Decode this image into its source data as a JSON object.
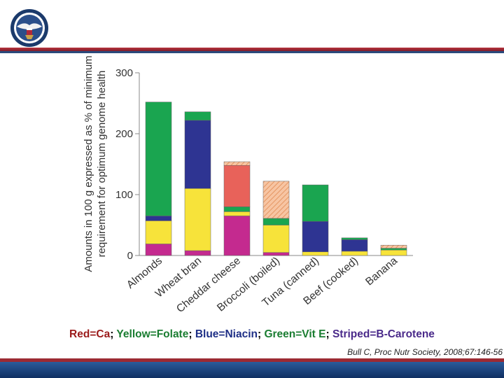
{
  "chart_data": {
    "type": "bar",
    "stacked": true,
    "categories": [
      "Almonds",
      "Wheat bran",
      "Cheddar cheese",
      "Broccoli (boiled)",
      "Tuna (canned)",
      "Beef (cooked)",
      "Banana"
    ],
    "ylabel_line1": "Amounts in 100 g expressed as % of minimum",
    "ylabel_line2": "requirement for optimum genome health",
    "ylim": [
      0,
      300
    ],
    "yticks": [
      "0",
      "100",
      "200",
      "300"
    ],
    "yticks_values": [
      0,
      100,
      200,
      300
    ],
    "series": [
      {
        "key": "ca",
        "color": "#c42a8f",
        "striped": false,
        "values": [
          19,
          8,
          65,
          5,
          0,
          0,
          0
        ]
      },
      {
        "key": "bc",
        "color": "#ecab9a",
        "striped": true,
        "values": [
          0,
          0,
          0,
          0,
          0,
          0,
          0
        ]
      },
      {
        "key": "fol",
        "color": "#f7e33a",
        "striped": false,
        "values": [
          38,
          102,
          7,
          45,
          6,
          7,
          9
        ]
      },
      {
        "key": "nia",
        "color": "#2e3492",
        "striped": false,
        "values": [
          8,
          112,
          0,
          0,
          50,
          19,
          0
        ]
      },
      {
        "key": "vite",
        "color": "#1aa550",
        "striped": false,
        "values": [
          187,
          14,
          8,
          11,
          60,
          3,
          3
        ]
      },
      {
        "key": "ca2",
        "color": "#e8625a",
        "striped": false,
        "values": [
          0,
          0,
          68,
          0,
          0,
          0,
          0
        ]
      },
      {
        "key": "bc2",
        "color": "#f6b78f",
        "striped": true,
        "values": [
          0,
          0,
          6,
          61,
          0,
          0,
          5
        ]
      }
    ]
  },
  "caption": {
    "ca_label": "Red=Ca",
    "folate_label": "Yellow=Folate",
    "niacin_label": "Blue=Niacin",
    "vite_label": "Green=Vit E",
    "carotene_label": "Striped=B-Carotene",
    "sep": "; ",
    "colors": {
      "red": "#9b1b1b",
      "yellow": "#1a7d31",
      "blue": "#1e2f86",
      "green": "#1a7d31",
      "striped": "#4a2a8a"
    }
  },
  "citation": "Bull C, Proc Nutr Society, 2008;67:146-56"
}
